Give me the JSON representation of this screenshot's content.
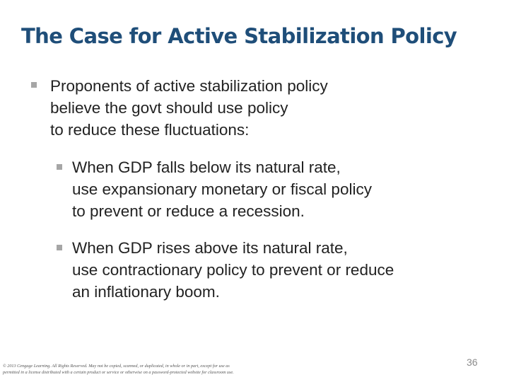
{
  "slide": {
    "title": "The Case for Active Stabilization Policy",
    "bullets": [
      {
        "lines": [
          "Proponents of active stabilization policy",
          "believe the govt should use policy",
          "to reduce these fluctuations:"
        ]
      },
      {
        "lines": [
          "When GDP falls below its natural rate,",
          "use expansionary monetary or fiscal policy",
          "to prevent or reduce a recession."
        ]
      },
      {
        "lines": [
          "When GDP rises above its natural rate,",
          "use contractionary policy to prevent or reduce",
          "an inflationary boom."
        ]
      }
    ],
    "footer": [
      "© 2013 Cengage Learning. All Rights Reserved. May not be copied, scanned, or duplicated, in whole or in part, except for use as",
      "permitted in a license distributed with a certain product or service or otherwise on a password-protected website for classroom use."
    ],
    "page_number": "36",
    "colors": {
      "title": "#1f4e79",
      "bullet_marker": "#a6a6a6",
      "body_text": "#222222"
    }
  }
}
